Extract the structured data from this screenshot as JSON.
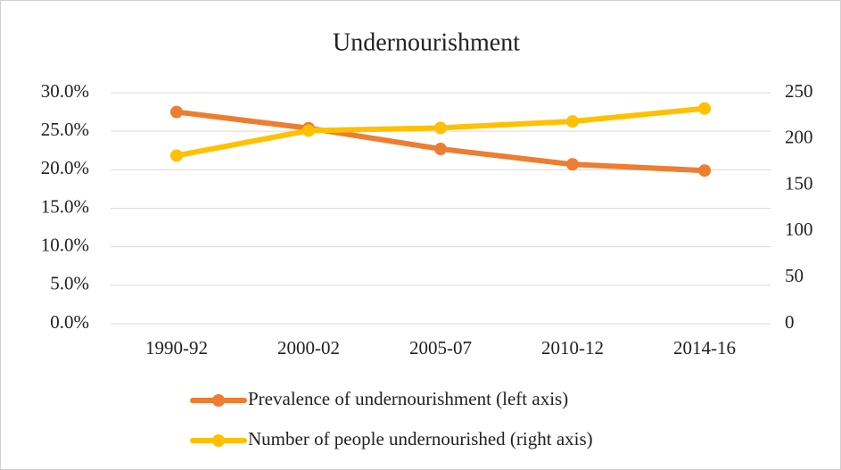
{
  "chart_data": {
    "type": "line",
    "title": "Undernourishment",
    "categories": [
      "1990-92",
      "2000-02",
      "2005-07",
      "2010-12",
      "2014-16"
    ],
    "series": [
      {
        "name": "Prevalence of undernourishment (left axis)",
        "color": "#ed7d31",
        "values": [
          27.5,
          25.4,
          22.7,
          20.7,
          19.9
        ]
      },
      {
        "name": "Number of people undernourished (right axis)",
        "color": "#ffc000",
        "axis": "y2",
        "values": [
          182,
          209,
          212,
          219,
          233
        ]
      }
    ],
    "ylim": [
      0,
      30
    ],
    "yticks": [
      {
        "value": 0,
        "label": "0.0%"
      },
      {
        "value": 5,
        "label": "5.0%"
      },
      {
        "value": 10,
        "label": "10.0%"
      },
      {
        "value": 15,
        "label": "15.0%"
      },
      {
        "value": 20,
        "label": "20.0%"
      },
      {
        "value": 25,
        "label": "25.0%"
      },
      {
        "value": 30,
        "label": "30.0%"
      }
    ],
    "y2lim": [
      0,
      250
    ],
    "y2ticks": [
      0,
      50,
      100,
      150,
      200,
      250
    ],
    "grid": true,
    "legend": "bottom"
  }
}
